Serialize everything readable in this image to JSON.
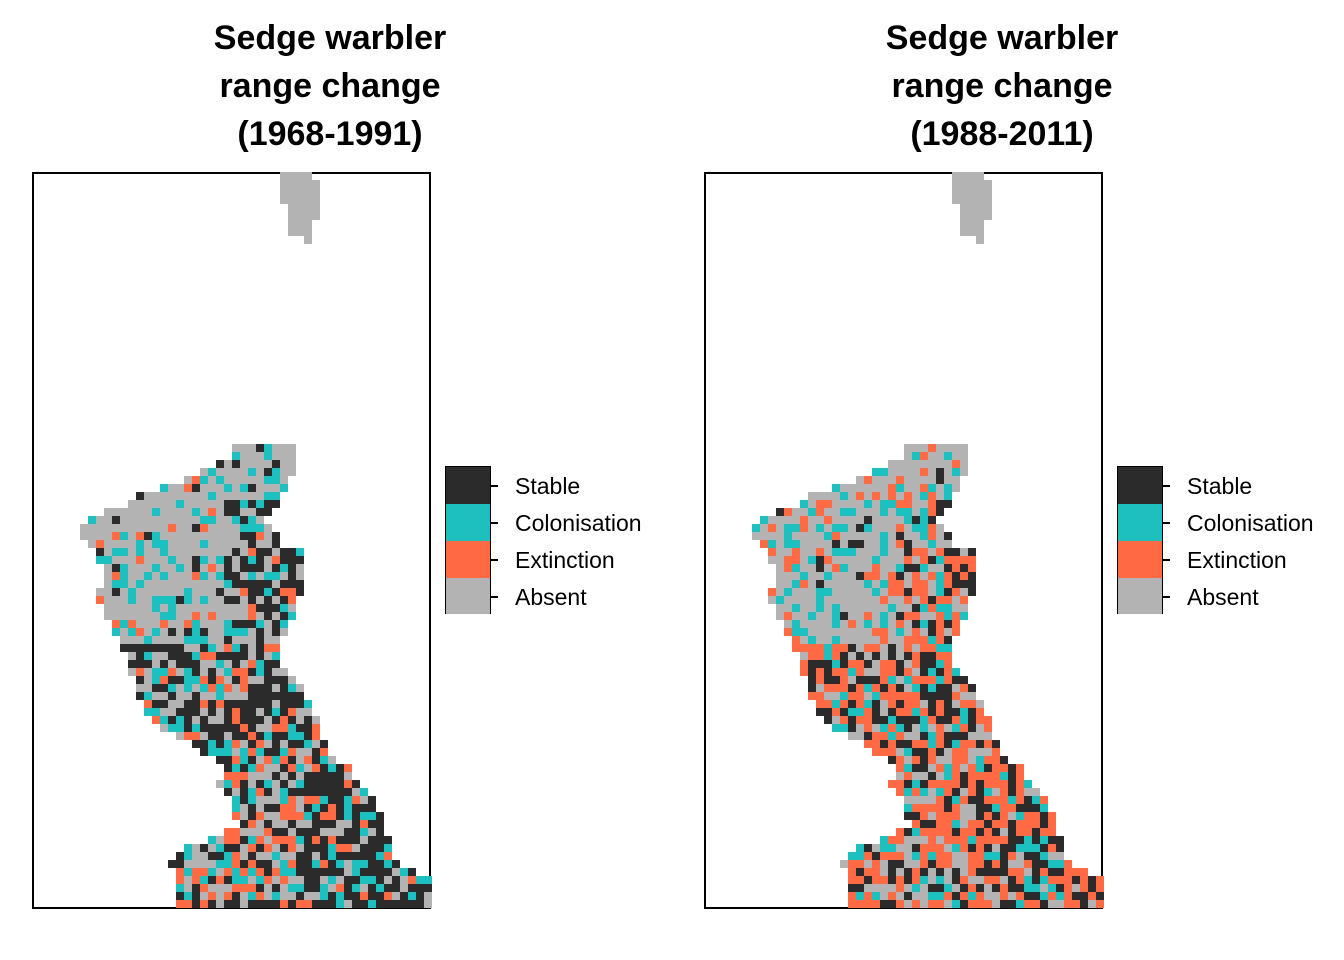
{
  "maps": [
    {
      "id": "left",
      "title": "Sedge warbler\nrange change\n(1968-1991)",
      "seed": 1968,
      "mode": "early"
    },
    {
      "id": "right",
      "title": "Sedge warbler\nrange change\n(1988-2011)",
      "seed": 1988,
      "mode": "late"
    }
  ],
  "legend": {
    "categories": [
      "Stable",
      "Colonisation",
      "Extinction",
      "Absent"
    ],
    "colors": {
      "Stable": "#2b2b2b",
      "Colonisation": "#1dbfbf",
      "Extinction": "#ff6a45",
      "Absent": "#b3b3b3"
    }
  }
}
